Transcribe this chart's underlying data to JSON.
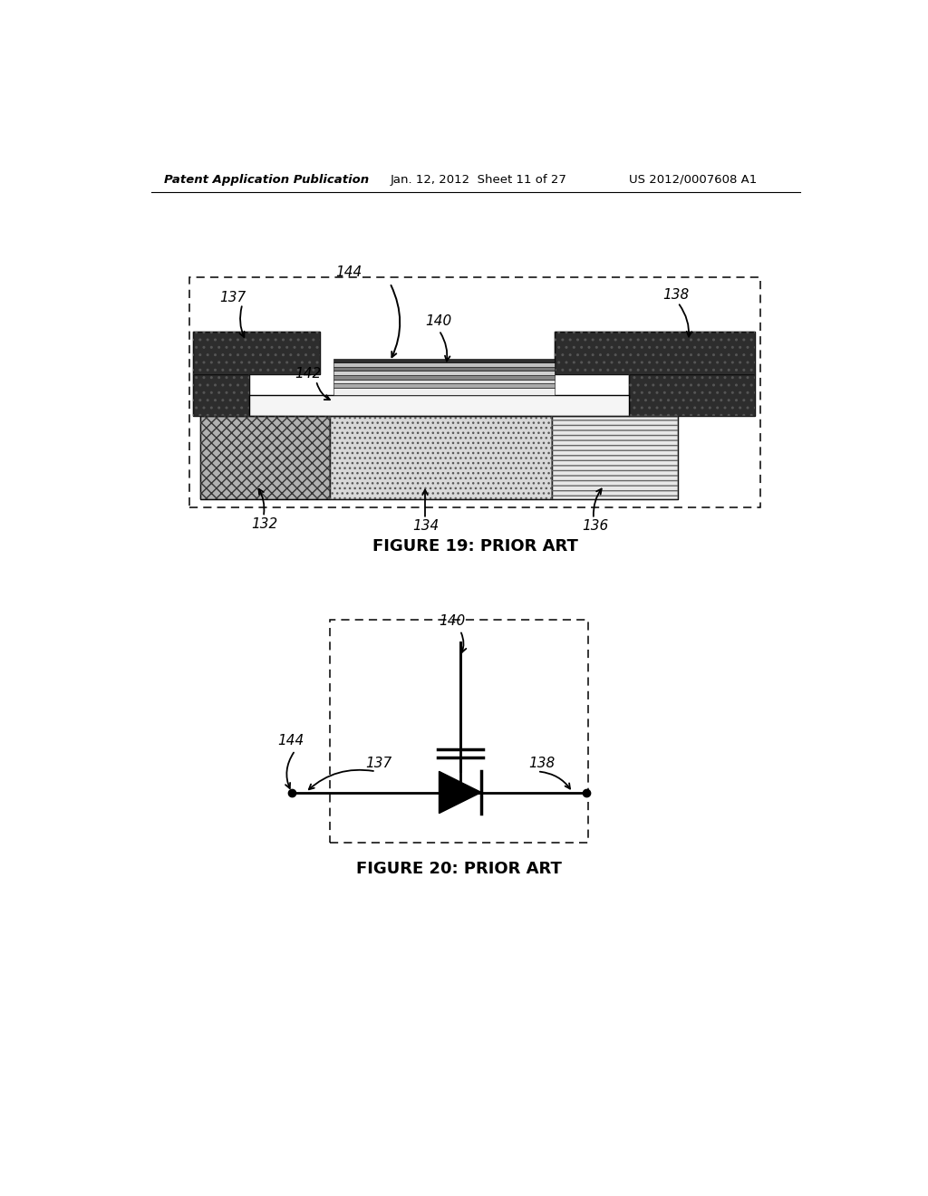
{
  "header_left": "Patent Application Publication",
  "header_center": "Jan. 12, 2012  Sheet 11 of 27",
  "header_right": "US 2012/0007608 A1",
  "fig19_caption": "FIGURE 19: PRIOR ART",
  "fig20_caption": "FIGURE 20: PRIOR ART",
  "bg_color": "#ffffff"
}
